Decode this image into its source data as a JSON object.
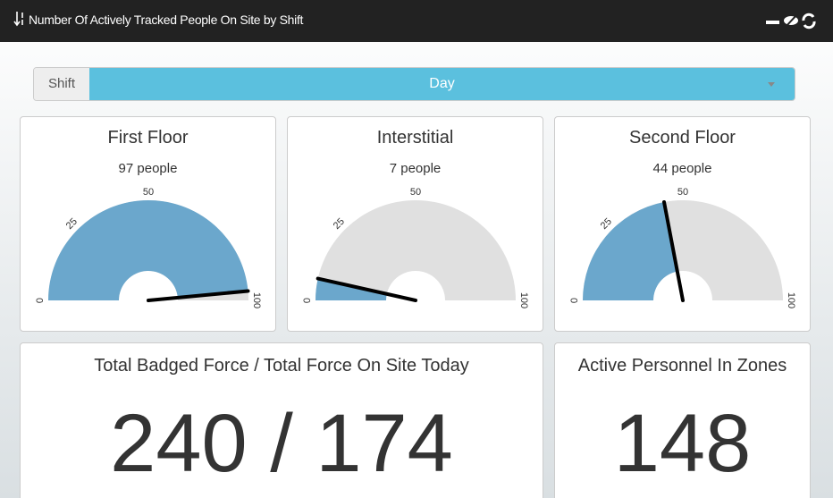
{
  "header": {
    "title": "Number Of Actively Tracked People On Site by Shift"
  },
  "filter": {
    "label": "Shift",
    "value": "Day"
  },
  "gauges": [
    {
      "title": "First Floor",
      "value_label": "97 people",
      "value": 97,
      "min": 0,
      "max": 100,
      "ticks": [
        0,
        25,
        50,
        100
      ],
      "color": "#6ba7cc"
    },
    {
      "title": "Interstitial",
      "value_label": "7 people",
      "value": 7,
      "min": 0,
      "max": 100,
      "ticks": [
        0,
        25,
        50,
        100
      ],
      "color": "#6ba7cc"
    },
    {
      "title": "Second Floor",
      "value_label": "44 people",
      "value": 44,
      "min": 0,
      "max": 100,
      "ticks": [
        0,
        25,
        50,
        100
      ],
      "color": "#6ba7cc"
    }
  ],
  "stats": [
    {
      "title": "Total Badged Force / Total Force On Site Today",
      "value": "240 / 174"
    },
    {
      "title": "Active Personnel In Zones",
      "value": "148"
    }
  ]
}
